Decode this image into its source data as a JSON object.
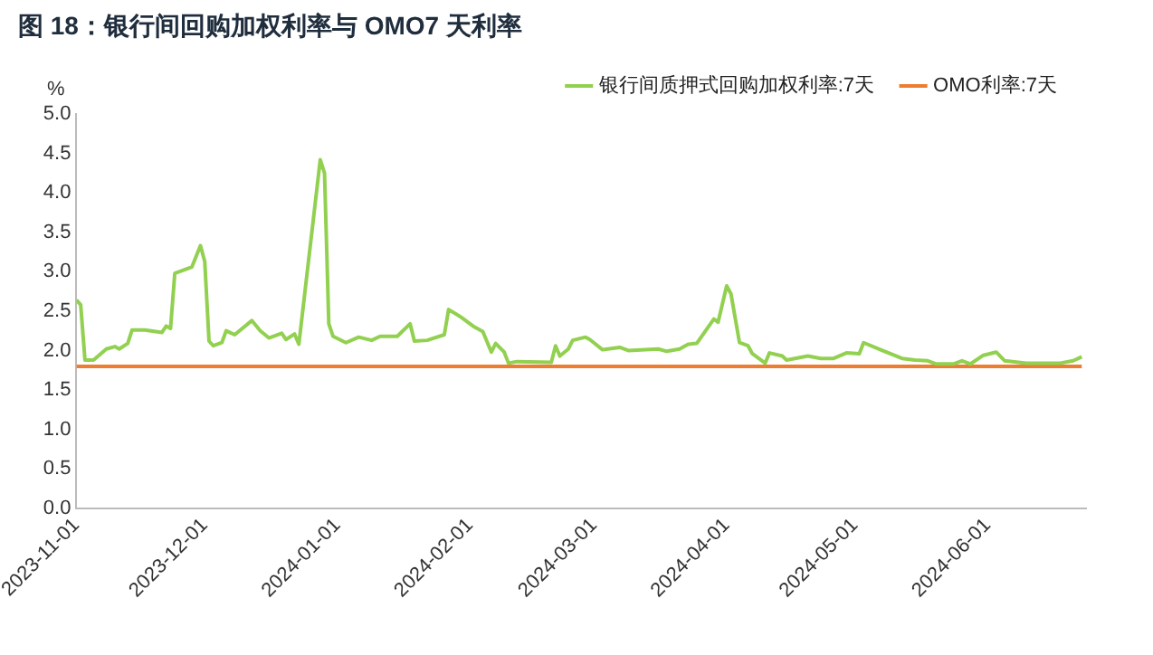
{
  "chart_data": {
    "type": "line",
    "title": "图 18：银行间回购加权利率与 OMO7 天利率",
    "ylabel": "%",
    "xlim": [
      "2023-11-01",
      "2024-06-24"
    ],
    "xticks": [
      "2023-11-01",
      "2023-12-01",
      "2024-01-01",
      "2024-02-01",
      "2024-03-01",
      "2024-04-01",
      "2024-05-01",
      "2024-06-01"
    ],
    "ylim": [
      0,
      5
    ],
    "yticks": [
      {
        "value": 0,
        "label": "0.0"
      },
      0.5,
      {
        "value": 1,
        "label": "1.0"
      },
      1.5,
      {
        "value": 2,
        "label": "2.0"
      },
      2.5,
      {
        "value": 3,
        "label": "3.0"
      },
      3.5,
      {
        "value": 4,
        "label": "4.0"
      },
      4.5,
      {
        "value": 5,
        "label": "5.0"
      }
    ],
    "grid": false,
    "legend": "top right",
    "marker": "none",
    "line_style": "solid",
    "series": [
      {
        "name": "银行间质押式回购加权利率:7天",
        "color": "#92d050",
        "x": [
          "2023-11-01",
          "2023-11-02",
          "2023-11-03",
          "2023-11-05",
          "2023-11-08",
          "2023-11-10",
          "2023-11-11",
          "2023-11-13",
          "2023-11-14",
          "2023-11-17",
          "2023-11-21",
          "2023-11-22",
          "2023-11-23",
          "2023-11-24",
          "2023-11-26",
          "2023-11-28",
          "2023-11-30",
          "2023-12-01",
          "2023-12-02",
          "2023-12-03",
          "2023-12-05",
          "2023-12-06",
          "2023-12-08",
          "2023-12-12",
          "2023-12-14",
          "2023-12-16",
          "2023-12-19",
          "2023-12-20",
          "2023-12-22",
          "2023-12-23",
          "2023-12-28",
          "2023-12-29",
          "2023-12-30",
          "2023-12-31",
          "2024-01-03",
          "2024-01-06",
          "2024-01-09",
          "2024-01-11",
          "2024-01-15",
          "2024-01-18",
          "2024-01-19",
          "2024-01-22",
          "2024-01-26",
          "2024-01-27",
          "2024-01-30",
          "2024-02-02",
          "2024-02-04",
          "2024-02-06",
          "2024-02-07",
          "2024-02-09",
          "2024-02-10",
          "2024-02-12",
          "2024-02-20",
          "2024-02-21",
          "2024-02-22",
          "2024-02-24",
          "2024-02-25",
          "2024-02-28",
          "2024-02-29",
          "2024-03-03",
          "2024-03-07",
          "2024-03-09",
          "2024-03-16",
          "2024-03-18",
          "2024-03-21",
          "2024-03-23",
          "2024-03-25",
          "2024-03-29",
          "2024-03-30",
          "2024-04-01",
          "2024-04-02",
          "2024-04-04",
          "2024-04-06",
          "2024-04-07",
          "2024-04-10",
          "2024-04-11",
          "2024-04-14",
          "2024-04-15",
          "2024-04-20",
          "2024-04-23",
          "2024-04-26",
          "2024-04-29",
          "2024-05-02",
          "2024-05-03",
          "2024-05-07",
          "2024-05-12",
          "2024-05-15",
          "2024-05-18",
          "2024-05-20",
          "2024-05-24",
          "2024-05-26",
          "2024-05-28",
          "2024-05-31",
          "2024-06-03",
          "2024-06-05",
          "2024-06-10",
          "2024-06-18",
          "2024-06-21",
          "2024-06-23"
        ],
        "values": [
          2.64,
          2.58,
          1.88,
          1.88,
          2.02,
          2.05,
          2.02,
          2.09,
          2.26,
          2.26,
          2.23,
          2.31,
          2.28,
          2.98,
          3.02,
          3.06,
          3.33,
          3.13,
          2.12,
          2.06,
          2.1,
          2.25,
          2.2,
          2.38,
          2.25,
          2.16,
          2.22,
          2.14,
          2.21,
          2.08,
          4.42,
          4.25,
          2.34,
          2.18,
          2.1,
          2.17,
          2.13,
          2.18,
          2.18,
          2.34,
          2.12,
          2.13,
          2.2,
          2.52,
          2.42,
          2.3,
          2.24,
          1.98,
          2.09,
          1.98,
          1.84,
          1.86,
          1.85,
          2.06,
          1.93,
          2.02,
          2.13,
          2.17,
          2.14,
          2.01,
          2.04,
          2.0,
          2.02,
          1.99,
          2.02,
          2.08,
          2.09,
          2.4,
          2.36,
          2.82,
          2.72,
          2.1,
          2.06,
          1.96,
          1.84,
          1.97,
          1.93,
          1.88,
          1.93,
          1.9,
          1.9,
          1.97,
          1.96,
          2.1,
          2.01,
          1.9,
          1.88,
          1.87,
          1.83,
          1.83,
          1.87,
          1.83,
          1.94,
          1.98,
          1.87,
          1.84,
          1.84,
          1.87,
          1.92
        ]
      },
      {
        "name": "OMO利率:7天",
        "color": "#ed7d31",
        "x": [
          "2023-11-01",
          "2024-06-23"
        ],
        "values": [
          1.8,
          1.8
        ]
      }
    ]
  }
}
